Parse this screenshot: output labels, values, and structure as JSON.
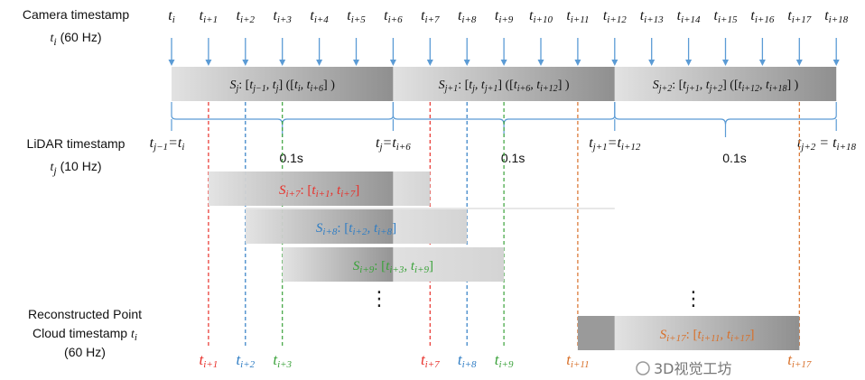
{
  "left_labels": {
    "camera": [
      "Camera timestamp",
      "t_i (60 Hz)"
    ],
    "lidar": [
      "LiDAR timestamp",
      "t_j (10 Hz)"
    ],
    "reconstructed": [
      "Reconstructed Point",
      "Cloud timestamp t_i",
      "(60 Hz)"
    ]
  },
  "camera_ticks": [
    "i",
    "i+1",
    "i+2",
    "i+3",
    "i+4",
    "i+5",
    "i+6",
    "i+7",
    "i+8",
    "i+9",
    "i+10",
    "i+11",
    "i+12",
    "i+13",
    "i+14",
    "i+15",
    "i+16",
    "i+17",
    "i+18"
  ],
  "lidar_segments": [
    {
      "label": "S_j: [t_{j−1}, t_j] ([t_i, t_{i+6}] )",
      "name": "S",
      "sub": "j",
      "a": "j−1",
      "b": "j",
      "c": "i",
      "d": "i+6"
    },
    {
      "label": "S_{j+1}: [t_j, t_{j+1}] ([t_{i+6}, t_{i+12}] )",
      "name": "S",
      "sub": "j+1",
      "a": "j",
      "b": "j+1",
      "c": "i+6",
      "d": "i+12"
    },
    {
      "label": "S_{j+2}: [t_{j+1}, t_{j+2}] ([t_{i+12}, t_{i+18}] )",
      "name": "S",
      "sub": "j+2",
      "a": "j+1",
      "b": "j+2",
      "c": "i+12",
      "d": "i+18"
    }
  ],
  "lidar_ticks": [
    {
      "left": "j−1",
      "right": "i"
    },
    {
      "left": "j",
      "right": "i+6"
    },
    {
      "left": "j+1",
      "right": "i+12"
    },
    {
      "left": "j+2",
      "right": "i+18"
    }
  ],
  "interval_label": "0.1s",
  "sliding_windows": [
    {
      "sub": "i+7",
      "a": "i+1",
      "b": "i+7",
      "color": "#e8302a"
    },
    {
      "sub": "i+8",
      "a": "i+2",
      "b": "i+8",
      "color": "#2f7dc4"
    },
    {
      "sub": "i+9",
      "a": "i+3",
      "b": "i+9",
      "color": "#3aa23a"
    },
    {
      "sub": "i+17",
      "a": "i+11",
      "b": "i+17",
      "color": "#d8702a"
    }
  ],
  "ellipsis": "⋮",
  "output_ticks": [
    {
      "sub": "i+1",
      "color": "#e8302a"
    },
    {
      "sub": "i+2",
      "color": "#2f7dc4"
    },
    {
      "sub": "i+3",
      "color": "#3aa23a"
    },
    {
      "sub": "i+7",
      "color": "#e8302a"
    },
    {
      "sub": "i+8",
      "color": "#2f7dc4"
    },
    {
      "sub": "i+9",
      "color": "#3aa23a"
    },
    {
      "sub": "i+11",
      "color": "#d8702a"
    },
    {
      "sub": "i+17",
      "color": "#d8702a"
    }
  ],
  "watermark": "3D视觉工坊",
  "colors": {
    "arrow": "#5b9bd5",
    "brace": "#5b9bd5"
  }
}
